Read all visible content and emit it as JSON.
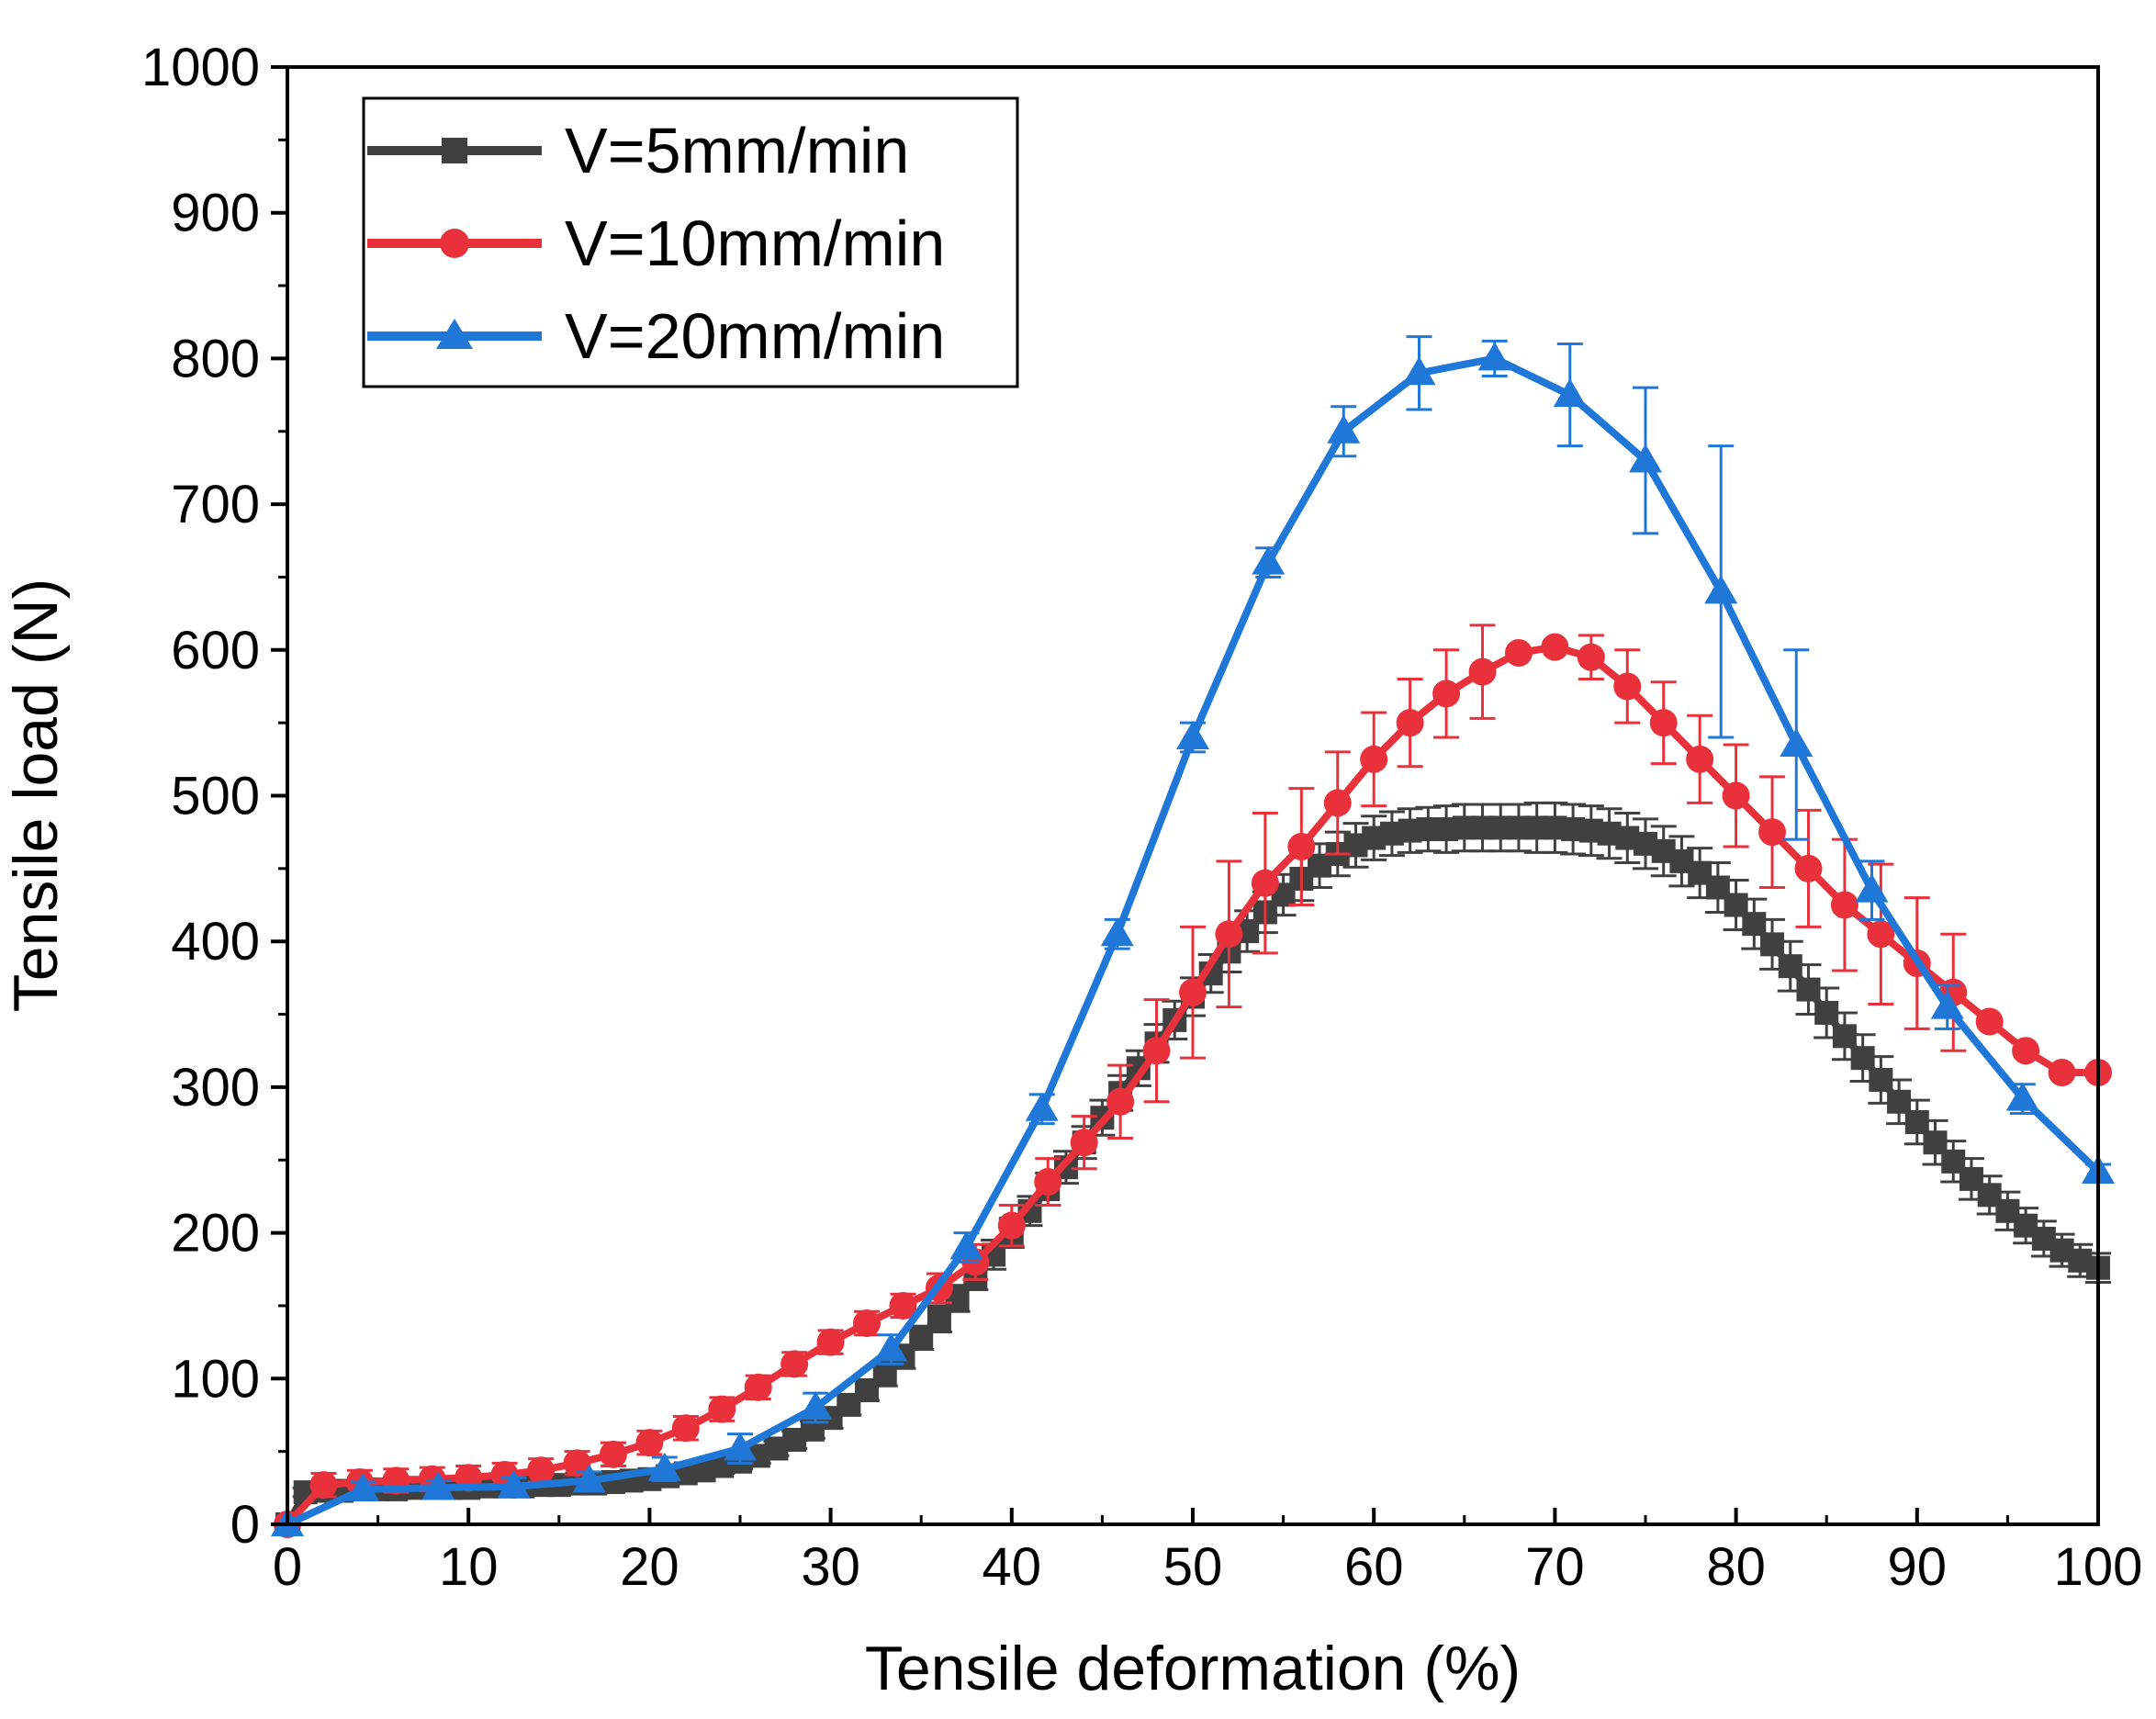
{
  "chart_data": {
    "type": "line",
    "title": "",
    "xlabel": "Tensile deformation (%)",
    "ylabel": "Tensile load (N)",
    "xlim": [
      0,
      100
    ],
    "ylim": [
      0,
      1000
    ],
    "x_ticks": [
      "0",
      "10",
      "20",
      "30",
      "40",
      "50",
      "60",
      "70",
      "80",
      "90",
      "100"
    ],
    "y_ticks": [
      "0",
      "100",
      "200",
      "300",
      "400",
      "500",
      "600",
      "700",
      "800",
      "900",
      "1000"
    ],
    "grid": false,
    "legend_position": "top-left",
    "series": [
      {
        "name": "V=5mm/min",
        "color": "#404040",
        "marker": "square",
        "x": [
          0,
          1,
          2,
          3,
          4,
          5,
          6,
          7,
          8,
          9,
          10,
          11,
          12,
          13,
          14,
          15,
          16,
          17,
          18,
          19,
          20,
          21,
          22,
          23,
          24,
          25,
          26,
          27,
          28,
          29,
          30,
          31,
          32,
          33,
          34,
          35,
          36,
          37,
          38,
          39,
          40,
          41,
          42,
          43,
          44,
          45,
          46,
          47,
          48,
          49,
          50,
          51,
          52,
          53,
          54,
          55,
          56,
          57,
          58,
          59,
          60,
          61,
          62,
          63,
          64,
          65,
          66,
          67,
          68,
          69,
          70,
          71,
          72,
          73,
          74,
          75,
          76,
          77,
          78,
          79,
          80,
          81,
          82,
          83,
          84,
          85,
          86,
          87,
          88,
          89,
          90,
          91,
          92,
          93,
          94,
          95,
          96,
          97,
          98,
          99,
          100
        ],
        "y": [
          0,
          22,
          23,
          23,
          24,
          24,
          24,
          25,
          25,
          25,
          25,
          26,
          26,
          26,
          27,
          27,
          28,
          28,
          29,
          30,
          31,
          33,
          35,
          37,
          40,
          43,
          47,
          52,
          58,
          65,
          73,
          82,
          92,
          103,
          115,
          128,
          141,
          155,
          170,
          185,
          200,
          215,
          230,
          245,
          262,
          279,
          296,
          313,
          330,
          346,
          362,
          378,
          393,
          407,
          420,
          432,
          443,
          452,
          460,
          466,
          471,
          474,
          476,
          477,
          477,
          478,
          478,
          478,
          478,
          478,
          478,
          477,
          476,
          474,
          471,
          467,
          462,
          455,
          447,
          437,
          425,
          412,
          398,
          383,
          367,
          351,
          335,
          320,
          305,
          290,
          276,
          262,
          249,
          237,
          226,
          215,
          205,
          196,
          188,
          181,
          176
        ],
        "error": [
          0,
          3,
          3,
          3,
          3,
          3,
          3,
          3,
          3,
          3,
          3,
          3,
          3,
          3,
          3,
          3,
          3,
          3,
          3,
          3,
          4,
          4,
          4,
          4,
          5,
          5,
          5,
          5,
          6,
          6,
          7,
          7,
          7,
          8,
          8,
          8,
          9,
          9,
          9,
          10,
          10,
          10,
          11,
          11,
          11,
          12,
          12,
          12,
          13,
          13,
          13,
          13,
          14,
          14,
          14,
          14,
          15,
          15,
          15,
          15,
          15,
          15,
          15,
          15,
          16,
          16,
          16,
          16,
          16,
          17,
          17,
          17,
          17,
          17,
          17,
          17,
          17,
          17,
          17,
          17,
          17,
          17,
          17,
          17,
          17,
          17,
          16,
          16,
          16,
          15,
          15,
          15,
          14,
          14,
          13,
          13,
          12,
          12,
          11,
          11,
          10
        ]
      },
      {
        "name": "V=10mm/min",
        "color": "#e8313a",
        "marker": "circle",
        "x": [
          0,
          2,
          4,
          6,
          8,
          10,
          12,
          14,
          16,
          18,
          20,
          22,
          24,
          26,
          28,
          30,
          32,
          34,
          36,
          38,
          40,
          42,
          44,
          46,
          48,
          50,
          52,
          54,
          56,
          58,
          60,
          62,
          64,
          66,
          68,
          70,
          72,
          74,
          76,
          78,
          80,
          82,
          84,
          86,
          88,
          90,
          92,
          94,
          96,
          98,
          100
        ],
        "y": [
          0,
          27,
          29,
          30,
          31,
          32,
          34,
          37,
          42,
          48,
          56,
          66,
          79,
          94,
          110,
          125,
          138,
          150,
          162,
          180,
          205,
          235,
          262,
          290,
          325,
          365,
          405,
          440,
          465,
          495,
          525,
          550,
          570,
          585,
          598,
          602,
          595,
          575,
          550,
          525,
          500,
          475,
          450,
          425,
          405,
          385,
          365,
          345,
          325,
          310,
          310
        ],
        "error": [
          0,
          8,
          8,
          8,
          8,
          8,
          8,
          8,
          8,
          8,
          8,
          8,
          8,
          8,
          8,
          8,
          8,
          8,
          10,
          12,
          14,
          16,
          18,
          25,
          35,
          45,
          50,
          48,
          40,
          35,
          32,
          30,
          30,
          32,
          0,
          0,
          15,
          25,
          28,
          30,
          35,
          38,
          40,
          45,
          48,
          45,
          40,
          0,
          0,
          0,
          0
        ]
      },
      {
        "name": "V=20mm/min",
        "color": "#1f77d8",
        "marker": "triangle",
        "x": [
          0,
          4.17,
          8.33,
          12.5,
          16.67,
          20.83,
          25,
          29.17,
          33.33,
          37.5,
          41.67,
          45.83,
          50,
          54.17,
          58.33,
          62.5,
          66.67,
          70.83,
          75,
          79.17,
          83.33,
          87.5,
          91.67,
          95.83,
          100
        ],
        "y": [
          0,
          24,
          25,
          26,
          30,
          38,
          52,
          80,
          120,
          190,
          285,
          405,
          540,
          660,
          750,
          790,
          800,
          775,
          730,
          640,
          535,
          435,
          355,
          292,
          242
        ],
        "error": [
          0,
          5,
          5,
          6,
          6,
          8,
          10,
          10,
          10,
          10,
          10,
          10,
          10,
          10,
          17,
          25,
          12,
          35,
          50,
          100,
          65,
          20,
          15,
          10,
          5
        ]
      }
    ]
  }
}
